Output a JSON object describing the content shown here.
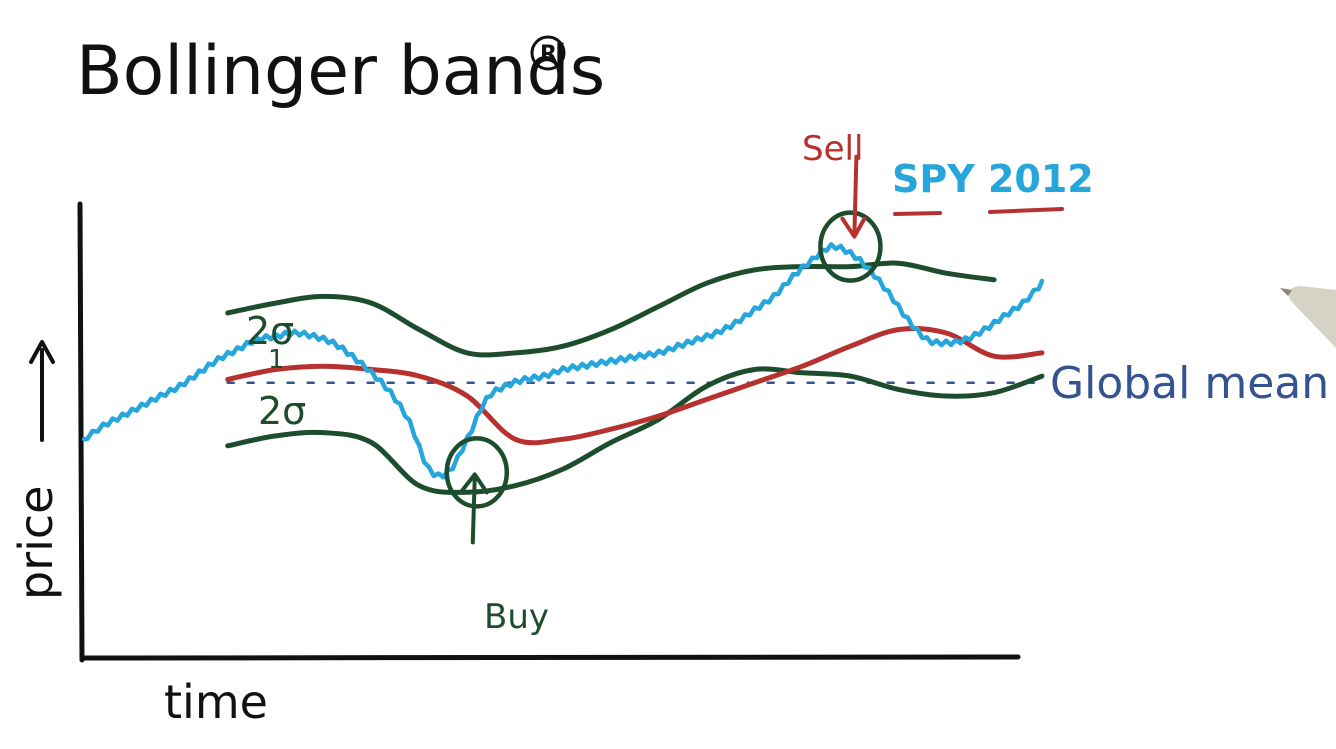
{
  "page": {
    "title": "Bollinger bands",
    "title_mark": "R"
  },
  "axes": {
    "x_label": "time",
    "y_label": "price",
    "y_arrow": "→"
  },
  "annotations": {
    "upper_band_label": "2σ",
    "lower_band_label": "2σ",
    "center_tick_label": "1",
    "legend_label": "SPY 2012",
    "sell_label": "Sell",
    "buy_label": "Buy",
    "mean_label": "Global mean"
  },
  "colors": {
    "price": "#27a6db",
    "moving_average": "#b7322f",
    "bands": "#1d4d2d",
    "global_mean": "#34538f",
    "ink": "#111111"
  },
  "chart_data": {
    "type": "line",
    "title": "Bollinger bands",
    "xlabel": "time",
    "ylabel": "price",
    "grid": false,
    "legend_placement": "top-right",
    "xlim": [
      0,
      100
    ],
    "ylim": [
      0,
      100
    ],
    "series": [
      {
        "name": "SPY 2012",
        "role": "price",
        "x": [
          0,
          2,
          4,
          6,
          8,
          10,
          12,
          14,
          16,
          18,
          20,
          22,
          24,
          26,
          28,
          30,
          32,
          34,
          36,
          38,
          40,
          42,
          44,
          46,
          48,
          50,
          52,
          54,
          56,
          58,
          60,
          62,
          64,
          66,
          68,
          70,
          72,
          74,
          76,
          78,
          80,
          82,
          84,
          86,
          88,
          90,
          92,
          94,
          96,
          98,
          100
        ],
        "values": [
          40,
          44,
          47,
          50,
          53,
          56,
          60,
          64,
          67,
          70,
          71,
          72,
          71,
          69,
          65,
          60,
          54,
          45,
          31,
          30,
          40,
          52,
          56,
          58,
          59,
          61,
          62,
          63,
          64,
          65,
          66,
          68,
          70,
          72,
          75,
          79,
          83,
          89,
          94,
          98,
          96,
          91,
          84,
          76,
          70,
          69,
          70,
          73,
          77,
          81,
          87
        ]
      },
      {
        "name": "",
        "role": "moving average",
        "x": [
          15,
          20,
          25,
          30,
          35,
          40,
          45,
          50,
          55,
          60,
          65,
          70,
          75,
          80,
          85,
          90,
          95,
          100
        ],
        "values": [
          58,
          61,
          62,
          61,
          59,
          53,
          40,
          40,
          43,
          47,
          52,
          57,
          62,
          68,
          73,
          72,
          65,
          66
        ]
      },
      {
        "name": "",
        "role": "upper band",
        "x": [
          15,
          20,
          25,
          30,
          35,
          40,
          45,
          50,
          55,
          60,
          65,
          70,
          75,
          80,
          85,
          90,
          95
        ],
        "values": [
          78,
          81,
          83,
          81,
          73,
          66,
          66,
          68,
          73,
          80,
          87,
          91,
          92,
          92,
          93,
          90,
          88
        ]
      },
      {
        "name": "",
        "role": "lower band",
        "x": [
          15,
          20,
          25,
          30,
          35,
          40,
          45,
          50,
          55,
          60,
          65,
          70,
          75,
          80,
          85,
          90,
          95,
          100
        ],
        "values": [
          38,
          41,
          42,
          39,
          26,
          24,
          26,
          31,
          39,
          46,
          56,
          61,
          60,
          59,
          55,
          53,
          54,
          59
        ]
      },
      {
        "name": "",
        "role": "global mean",
        "x": [
          15,
          100
        ],
        "values": [
          57,
          57
        ]
      }
    ],
    "markers": [
      {
        "label": "Buy",
        "x": 41,
        "y": 30
      },
      {
        "label": "Sell",
        "x": 80,
        "y": 98
      }
    ]
  }
}
